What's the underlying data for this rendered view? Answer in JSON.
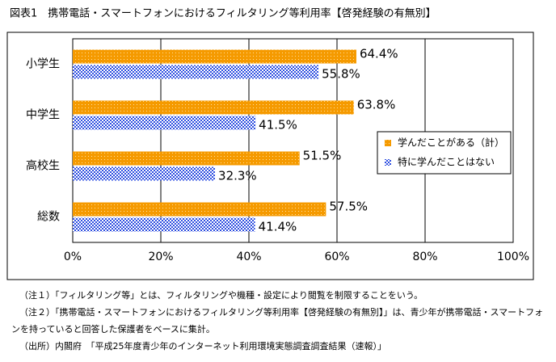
{
  "chart_data": {
    "type": "hbar",
    "title": "図表1　携帯電話・スマートフォンにおけるフィルタリング等利用率【啓発経験の有無別】",
    "categories": [
      "小学生",
      "中学生",
      "高校生",
      "総数"
    ],
    "series": [
      {
        "name": "学んだことがある（計）",
        "color": "#f59a00",
        "pattern": "dots",
        "values": [
          64.4,
          63.8,
          51.5,
          57.5
        ],
        "value_labels": [
          "64.4%",
          "63.8%",
          "51.5%",
          "57.5%"
        ]
      },
      {
        "name": "特に学んだことはない",
        "color": "#2f4fe0",
        "pattern": "checker",
        "values": [
          55.8,
          41.5,
          32.3,
          41.4
        ],
        "value_labels": [
          "55.8%",
          "41.5%",
          "32.3%",
          "41.4%"
        ]
      }
    ],
    "xlim": [
      0,
      100
    ],
    "xticks": [
      {
        "value": 0,
        "label": "0%"
      },
      {
        "value": 20,
        "label": "20%"
      },
      {
        "value": 40,
        "label": "40%"
      },
      {
        "value": 60,
        "label": "60%"
      },
      {
        "value": 80,
        "label": "80%"
      },
      {
        "value": 100,
        "label": "100%"
      }
    ],
    "grid": true,
    "legend": "right"
  },
  "notes": [
    "（注１）「フィルタリング等」とは、フィルタリングや機種・設定により閲覧を制限することをいう。",
    "（注２）「携帯電話・スマートフォンにおけるフィルタリング等利用率【啓発経験の有無別】」は、青少年が携帯電話・スマートフォンを持っていると回答した保護者をベースに集計。",
    "（出所）内閣府　「平成25年度青少年のインターネット利用環境実態調査調査結果（速報）」"
  ]
}
